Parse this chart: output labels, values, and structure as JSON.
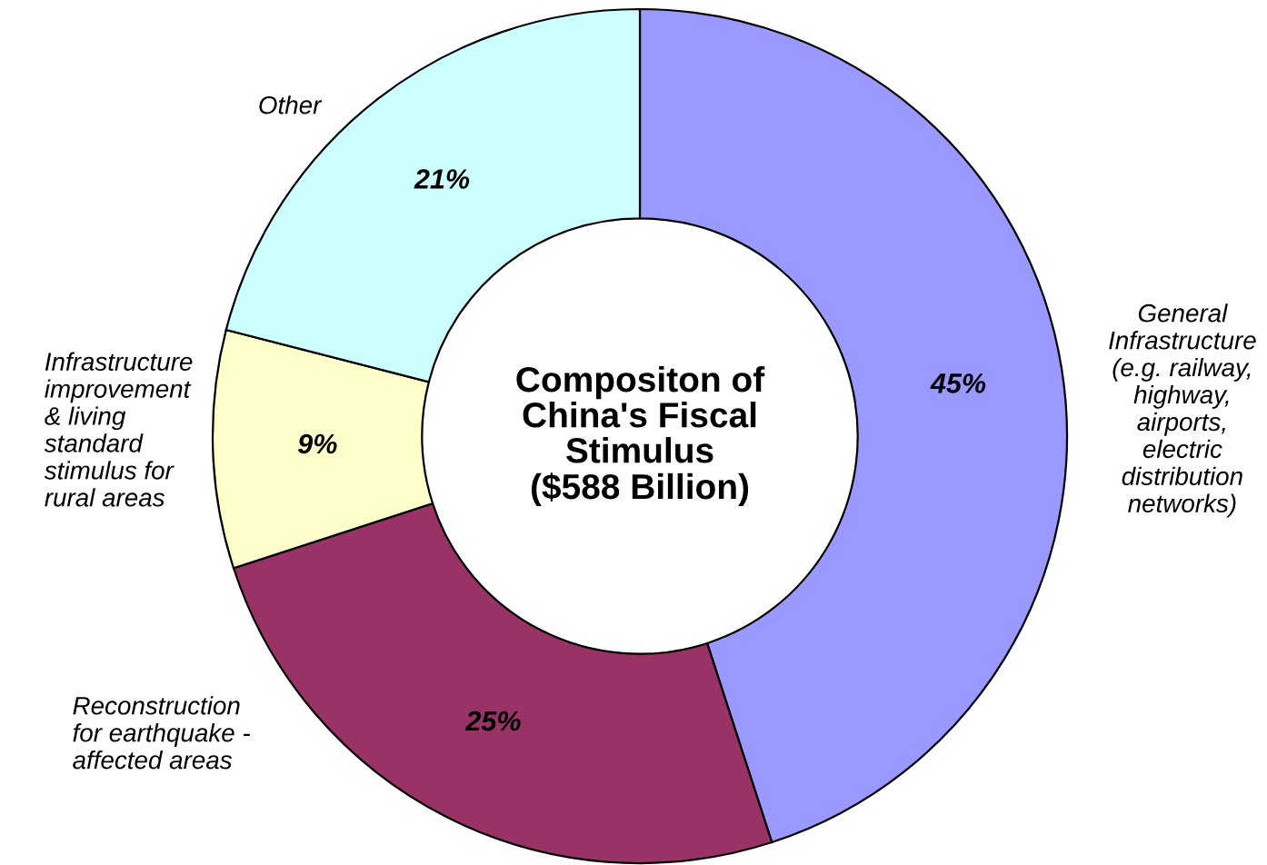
{
  "chart_data": {
    "type": "donut",
    "title": "Compositon of\nChina's Fiscal\nStimulus\n($588 Billion)",
    "categories": [
      "General\nInfrastructure\n(e.g. railway,\nhighway,\nairports,\nelectric\ndistribution\nnetworks)",
      "Reconstruction\nfor earthquake -\naffected areas",
      "Infrastructure\nimprovement\n& living\nstandard\nstimulus for\nrural areas",
      "Other"
    ],
    "values": [
      45,
      25,
      9,
      21
    ],
    "colors": [
      "#9999ff",
      "#993366",
      "#ffffcc",
      "#ccffff"
    ],
    "value_labels": [
      "45%",
      "25%",
      "9%",
      "21%"
    ]
  }
}
